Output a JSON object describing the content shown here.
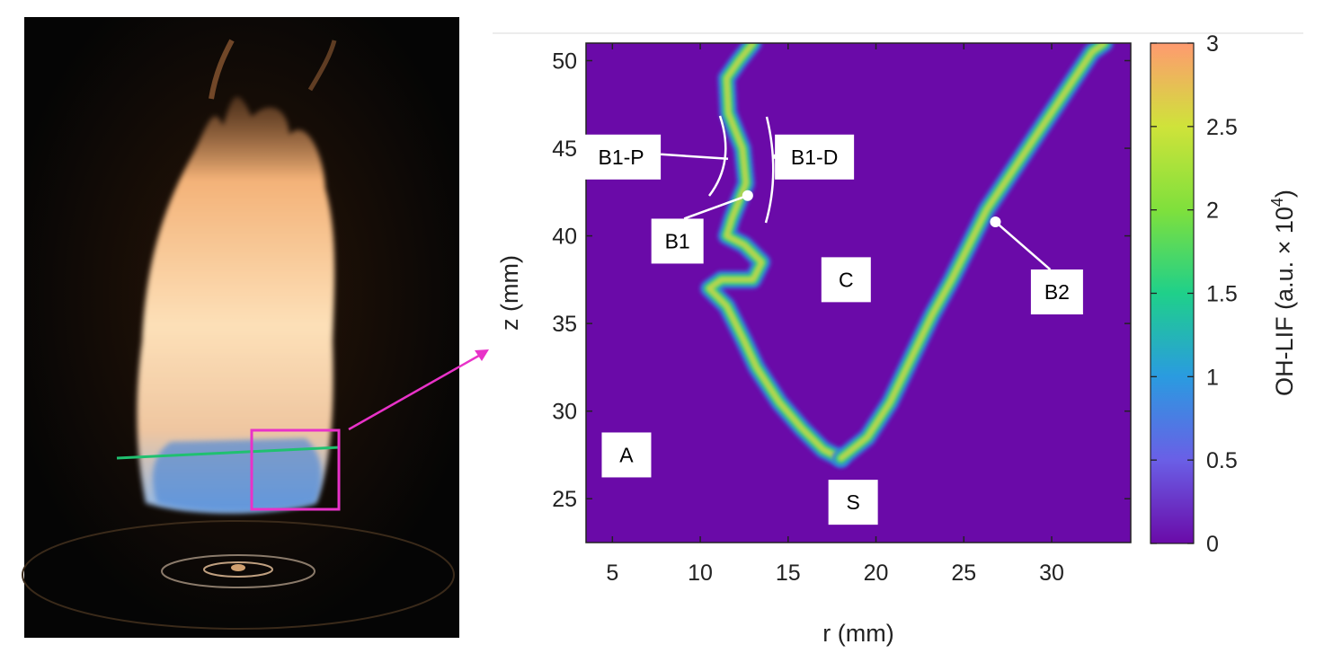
{
  "chart_data": {
    "type": "heatmap",
    "title": "",
    "xlabel": "r (mm)",
    "ylabel": "z (mm)",
    "xlim": [
      3.5,
      34.5
    ],
    "ylim": [
      22.5,
      51
    ],
    "xticks": [
      5,
      10,
      15,
      20,
      25,
      30
    ],
    "yticks": [
      25,
      30,
      35,
      40,
      45,
      50
    ],
    "grid": false,
    "colorbar": {
      "label_main": "OH-LIF (a.u. × 10",
      "label_exp": "4",
      "label_close": ")",
      "range": [
        0,
        3
      ],
      "ticks": [
        0,
        0.5,
        1,
        1.5,
        2,
        2.5,
        3
      ],
      "tick_labels": [
        "0",
        "0.5",
        "1",
        "1.5",
        "2",
        "2.5",
        "3"
      ],
      "colors": [
        "#6a0aa8",
        "#6a5fe6",
        "#2a9be0",
        "#1fd08a",
        "#7fe03c",
        "#cfe33a",
        "#ff9a70"
      ]
    },
    "background_color": "#6a0aa8",
    "flame_front_branch_1": {
      "r": [
        13.0,
        12.2,
        11.5,
        11.6,
        12.4,
        12.6,
        11.8,
        11.5,
        12.5,
        13.5,
        13.0,
        11.2,
        10.5,
        11.5,
        12.0,
        12.5,
        13.2,
        14.5,
        15.8,
        17.0,
        18.0
      ],
      "z": [
        51,
        50,
        49,
        47,
        45,
        43,
        41,
        40,
        39.5,
        38.5,
        37.5,
        37.5,
        37,
        36,
        35,
        34,
        32.5,
        30.5,
        29,
        27.8,
        27.3
      ]
    },
    "flame_front_branch_2": {
      "r": [
        18.0,
        19.5,
        20.8,
        22.0,
        23.2,
        24.3,
        25.3,
        26.3,
        27.3,
        28.3,
        29.3,
        30.3,
        31.3,
        32.3,
        33.0
      ],
      "z": [
        27.3,
        28.5,
        30.5,
        33,
        35.5,
        37.5,
        39.5,
        41.5,
        43,
        44.5,
        46,
        47.5,
        49,
        50.5,
        51
      ]
    },
    "region_labels": [
      {
        "text": "A",
        "r": 5.8,
        "z": 27.5
      },
      {
        "text": "S",
        "r": 18.7,
        "z": 24.8
      },
      {
        "text": "C",
        "r": 18.3,
        "z": 37.5
      },
      {
        "text": "B1",
        "r": 8.7,
        "z": 39.7
      },
      {
        "text": "B2",
        "r": 30.3,
        "z": 36.8
      },
      {
        "text": "B1-P",
        "r": 5.5,
        "z": 44.5
      },
      {
        "text": "B1-D",
        "r": 16.5,
        "z": 44.5
      }
    ],
    "annotation_points": [
      {
        "name": "B1",
        "r": 12.7,
        "z": 42.3
      },
      {
        "name": "B2",
        "r": 26.8,
        "z": 40.8
      }
    ],
    "inset_photo": {
      "content": "turbulent swirl flame photograph",
      "highlight_color": "#e832c8"
    }
  }
}
